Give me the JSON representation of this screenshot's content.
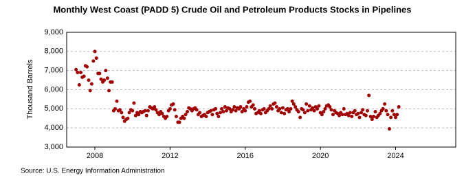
{
  "chart_data": {
    "type": "scatter",
    "title": "Monthly West Coast (PADD 5) Crude Oil and Petroleum Products Stocks in Pipelines",
    "y_label": "Thousand Barrels",
    "source": "Source: U.S. Energy Information Administration",
    "color": "#a00000",
    "grid": true,
    "xlim": [
      2006.5,
      2027.2
    ],
    "xticks": [
      2008,
      2012,
      2016,
      2020,
      2024
    ],
    "ylim": [
      3000,
      9000
    ],
    "yticks": [
      {
        "value": 3000,
        "label": "3,000"
      },
      {
        "value": 4000,
        "label": "4,000"
      },
      {
        "value": 5000,
        "label": "5,000"
      },
      {
        "value": 6000,
        "label": "6,000"
      },
      {
        "value": 7000,
        "label": "7,000"
      },
      {
        "value": 8000,
        "label": "8,000"
      },
      {
        "value": 9000,
        "label": "9,000"
      }
    ],
    "x": [
      2007.0,
      2007.08,
      2007.17,
      2007.25,
      2007.33,
      2007.42,
      2007.5,
      2007.58,
      2007.67,
      2007.75,
      2007.83,
      2007.92,
      2008.0,
      2008.08,
      2008.17,
      2008.25,
      2008.33,
      2008.42,
      2008.5,
      2008.58,
      2008.67,
      2008.75,
      2008.83,
      2008.92,
      2009.0,
      2009.08,
      2009.17,
      2009.25,
      2009.33,
      2009.42,
      2009.5,
      2009.58,
      2009.67,
      2009.75,
      2009.83,
      2009.92,
      2010.0,
      2010.08,
      2010.17,
      2010.25,
      2010.33,
      2010.42,
      2010.5,
      2010.58,
      2010.67,
      2010.75,
      2010.83,
      2010.92,
      2011.0,
      2011.08,
      2011.17,
      2011.25,
      2011.33,
      2011.42,
      2011.5,
      2011.58,
      2011.67,
      2011.75,
      2011.83,
      2011.92,
      2012.0,
      2012.08,
      2012.17,
      2012.25,
      2012.33,
      2012.42,
      2012.5,
      2012.58,
      2012.67,
      2012.75,
      2012.83,
      2012.92,
      2013.0,
      2013.08,
      2013.17,
      2013.25,
      2013.33,
      2013.42,
      2013.5,
      2013.58,
      2013.67,
      2013.75,
      2013.83,
      2013.92,
      2014.0,
      2014.08,
      2014.17,
      2014.25,
      2014.33,
      2014.42,
      2014.5,
      2014.58,
      2014.67,
      2014.75,
      2014.83,
      2014.92,
      2015.0,
      2015.08,
      2015.17,
      2015.25,
      2015.33,
      2015.42,
      2015.5,
      2015.58,
      2015.67,
      2015.75,
      2015.83,
      2015.92,
      2016.0,
      2016.08,
      2016.17,
      2016.25,
      2016.33,
      2016.42,
      2016.5,
      2016.58,
      2016.67,
      2016.75,
      2016.83,
      2016.92,
      2017.0,
      2017.08,
      2017.17,
      2017.25,
      2017.33,
      2017.42,
      2017.5,
      2017.58,
      2017.67,
      2017.75,
      2017.83,
      2017.92,
      2018.0,
      2018.08,
      2018.17,
      2018.25,
      2018.33,
      2018.42,
      2018.5,
      2018.58,
      2018.67,
      2018.75,
      2018.83,
      2018.92,
      2019.0,
      2019.08,
      2019.17,
      2019.25,
      2019.33,
      2019.42,
      2019.5,
      2019.58,
      2019.67,
      2019.75,
      2019.83,
      2019.92,
      2020.0,
      2020.08,
      2020.17,
      2020.25,
      2020.33,
      2020.42,
      2020.5,
      2020.58,
      2020.67,
      2020.75,
      2020.83,
      2020.92,
      2021.0,
      2021.08,
      2021.17,
      2021.25,
      2021.33,
      2021.42,
      2021.5,
      2021.58,
      2021.67,
      2021.75,
      2021.83,
      2021.92,
      2022.0,
      2022.08,
      2022.17,
      2022.25,
      2022.33,
      2022.42,
      2022.5,
      2022.58,
      2022.67,
      2022.75,
      2022.83,
      2022.92,
      2023.0,
      2023.08,
      2023.17,
      2023.25,
      2023.33,
      2023.42,
      2023.5,
      2023.58,
      2023.67,
      2023.75,
      2023.83,
      2023.92,
      2024.0,
      2024.08,
      2024.17
    ],
    "values": [
      7050,
      6900,
      6250,
      6900,
      6650,
      6700,
      7250,
      7200,
      6500,
      5950,
      6300,
      7500,
      8000,
      7650,
      6850,
      6850,
      6550,
      6400,
      6500,
      7000,
      6600,
      5950,
      6400,
      6400,
      4900,
      5000,
      5400,
      4900,
      4950,
      4800,
      4550,
      4350,
      4450,
      4500,
      4800,
      4950,
      4900,
      5300,
      4650,
      4800,
      4700,
      4850,
      4800,
      4850,
      4900,
      4650,
      4900,
      5100,
      5050,
      5000,
      5100,
      4950,
      4800,
      4700,
      4850,
      4750,
      4600,
      4500,
      4600,
      4900,
      5000,
      5200,
      5250,
      4950,
      4600,
      4300,
      4300,
      4500,
      4600,
      4500,
      4700,
      4850,
      5050,
      5000,
      4900,
      5000,
      5050,
      4950,
      4700,
      4800,
      4600,
      4650,
      4700,
      4600,
      4800,
      4850,
      4900,
      4700,
      4950,
      5000,
      4750,
      4600,
      4800,
      5000,
      4850,
      5100,
      4900,
      5050,
      5000,
      4850,
      4950,
      5100,
      4900,
      5050,
      5000,
      5100,
      4850,
      5000,
      4900,
      5100,
      5350,
      5400,
      5100,
      5200,
      5000,
      4750,
      4800,
      4900,
      4750,
      4950,
      5000,
      4800,
      4900,
      5000,
      5150,
      5000,
      5250,
      5300,
      5100,
      4900,
      5000,
      4800,
      5050,
      4750,
      4950,
      5000,
      4850,
      5000,
      5400,
      5250,
      5100,
      4950,
      4850,
      4550,
      5000,
      4950,
      4800,
      5250,
      4900,
      5150,
      4950,
      5050,
      4900,
      5100,
      5000,
      5150,
      4800,
      4700,
      4850,
      5000,
      5150,
      5200,
      5100,
      4950,
      4700,
      4900,
      4800,
      4750,
      4650,
      4800,
      4700,
      5000,
      4700,
      4750,
      4650,
      4800,
      4600,
      4800,
      4900,
      4700,
      4750,
      4550,
      4800,
      4950,
      4700,
      4650,
      4900,
      5700,
      4600,
      4450,
      4600,
      4850,
      4550,
      4650,
      4750,
      4900,
      5000,
      5250,
      4900,
      4700,
      3950,
      4550,
      4900,
      4700,
      4550,
      4700,
      5100
    ]
  }
}
